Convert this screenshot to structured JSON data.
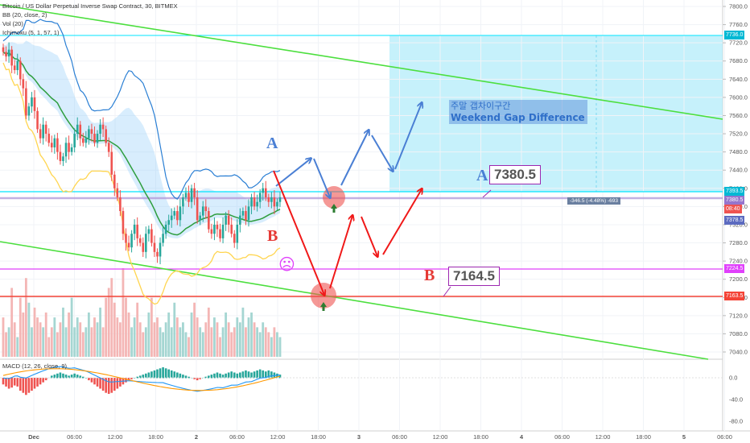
{
  "legend": {
    "title": "Bitcoin / US Dollar Perpetual Inverse Swap Contract, 30, BITMEX",
    "bb": "BB (20, close, 2)",
    "vol": "Vol (20)",
    "ichimoku": "Ichimoku (5, 1, 57, 1)",
    "macd": "MACD (12, 26, close, 9)"
  },
  "price_axis": {
    "ticks": [
      "7800.0",
      "7760.0",
      "7720.0",
      "7680.0",
      "7640.0",
      "7600.0",
      "7560.0",
      "7520.0",
      "7480.0",
      "7440.0",
      "7400.0",
      "7360.0",
      "7320.0",
      "7280.0",
      "7240.0",
      "7200.0",
      "7160.0",
      "7120.0",
      "7080.0",
      "7040.0"
    ],
    "tags": {
      "upper": "7736.0",
      "cyan_line": "7393.5",
      "target_a": "7380.5",
      "countdown": "08:40",
      "current": "7378.5",
      "magenta": "7224.5",
      "red": "7163.5"
    }
  },
  "macd_axis": {
    "ticks": [
      "0.0",
      "-40.0",
      "-80.0"
    ]
  },
  "time_axis": {
    "ticks": [
      "Dec",
      "06:00",
      "12:00",
      "18:00",
      "2",
      "06:00",
      "12:00",
      "18:00",
      "3",
      "06:00",
      "12:00",
      "18:00",
      "4",
      "06:00",
      "12:00",
      "18:00",
      "5",
      "06:00"
    ]
  },
  "annotations": {
    "label_a_upper": "A",
    "label_a": "A",
    "label_b_upper": "B",
    "label_b": "B",
    "box_a": "7380.5",
    "box_b": "7164.5",
    "gap_ko": "주말 갭차이구간",
    "gap_en": "Weekend Gap Difference",
    "measure": "-346.5 (-4.48%) -693",
    "sad_face": "☹"
  },
  "colors": {
    "up": "#26a69a",
    "down": "#ef5350",
    "cyan": "#00e5ff",
    "magenta": "#e040fb",
    "red_level": "#f44336",
    "channel": "#4cdf3e",
    "arrow_blue": "#4a7fd4",
    "arrow_red": "#f01818"
  },
  "chart_data": {
    "type": "candlestick",
    "title": "Bitcoin / US Dollar Perpetual Inverse Swap Contract, 30, BITMEX",
    "ylim": [
      7020,
      7820
    ],
    "levels": {
      "gap_top": 7736.0,
      "cyan": 7393.5,
      "target_a": 7380.5,
      "current": 7378.5,
      "magenta": 7224.5,
      "red": 7163.5,
      "target_b": 7164.5
    },
    "close": [
      7700,
      7690,
      7705,
      7670,
      7660,
      7680,
      7640,
      7620,
      7560,
      7580,
      7600,
      7570,
      7530,
      7510,
      7540,
      7520,
      7500,
      7490,
      7510,
      7480,
      7460,
      7470,
      7500,
      7480,
      7490,
      7520,
      7540,
      7510,
      7500,
      7510,
      7530,
      7520,
      7500,
      7520,
      7540,
      7530,
      7500,
      7480,
      7430,
      7400,
      7380,
      7350,
      7300,
      7280,
      7270,
      7300,
      7320,
      7290,
      7280,
      7260,
      7300,
      7310,
      7280,
      7260,
      7250,
      7280,
      7300,
      7320,
      7330,
      7340,
      7350,
      7330,
      7360,
      7380,
      7390,
      7370,
      7400,
      7380,
      7330,
      7340,
      7360,
      7350,
      7310,
      7300,
      7320,
      7310,
      7290,
      7320,
      7340,
      7320,
      7300,
      7280,
      7320,
      7340,
      7350,
      7330,
      7360,
      7380,
      7360,
      7370,
      7390,
      7400,
      7380,
      7370,
      7380,
      7360,
      7370,
      7380
    ],
    "volume": [
      40,
      25,
      30,
      70,
      35,
      20,
      60,
      45,
      80,
      55,
      30,
      50,
      40,
      35,
      30,
      45,
      20,
      30,
      40,
      25,
      35,
      50,
      30,
      45,
      60,
      30,
      40,
      35,
      25,
      30,
      45,
      30,
      40,
      35,
      50,
      30,
      60,
      70,
      80,
      55,
      40,
      35,
      90,
      60,
      45,
      30,
      40,
      55,
      35,
      25,
      30,
      45,
      60,
      35,
      40,
      30,
      25,
      35,
      45,
      30,
      55,
      40,
      30,
      35,
      25,
      20,
      45,
      55,
      40,
      30,
      25,
      35,
      50,
      30,
      40,
      35,
      20,
      30,
      45,
      35,
      25,
      30,
      40,
      35,
      50,
      30,
      40,
      45,
      35,
      30,
      25,
      35,
      30,
      25,
      20,
      30,
      25,
      20
    ],
    "macd_hist": [
      -6,
      -8,
      -10,
      -9,
      -7,
      -8,
      -12,
      -14,
      -16,
      -14,
      -12,
      -10,
      -8,
      -6,
      -4,
      -2,
      0,
      2,
      3,
      4,
      5,
      4,
      3,
      2,
      3,
      4,
      3,
      2,
      1,
      0,
      -2,
      -4,
      -6,
      -8,
      -10,
      -12,
      -14,
      -15,
      -14,
      -12,
      -10,
      -8,
      -6,
      -4,
      -2,
      -1,
      0,
      1,
      2,
      3,
      4,
      5,
      6,
      7,
      8,
      9,
      10,
      9,
      8,
      7,
      6,
      5,
      4,
      3,
      2,
      1,
      0,
      -1,
      -2,
      -1,
      0,
      1,
      2,
      3,
      4,
      5,
      4,
      3,
      4,
      5,
      6,
      5,
      4,
      5,
      6,
      7,
      6,
      5,
      6,
      7,
      8,
      7,
      6,
      7,
      6,
      5,
      4,
      3
    ]
  }
}
